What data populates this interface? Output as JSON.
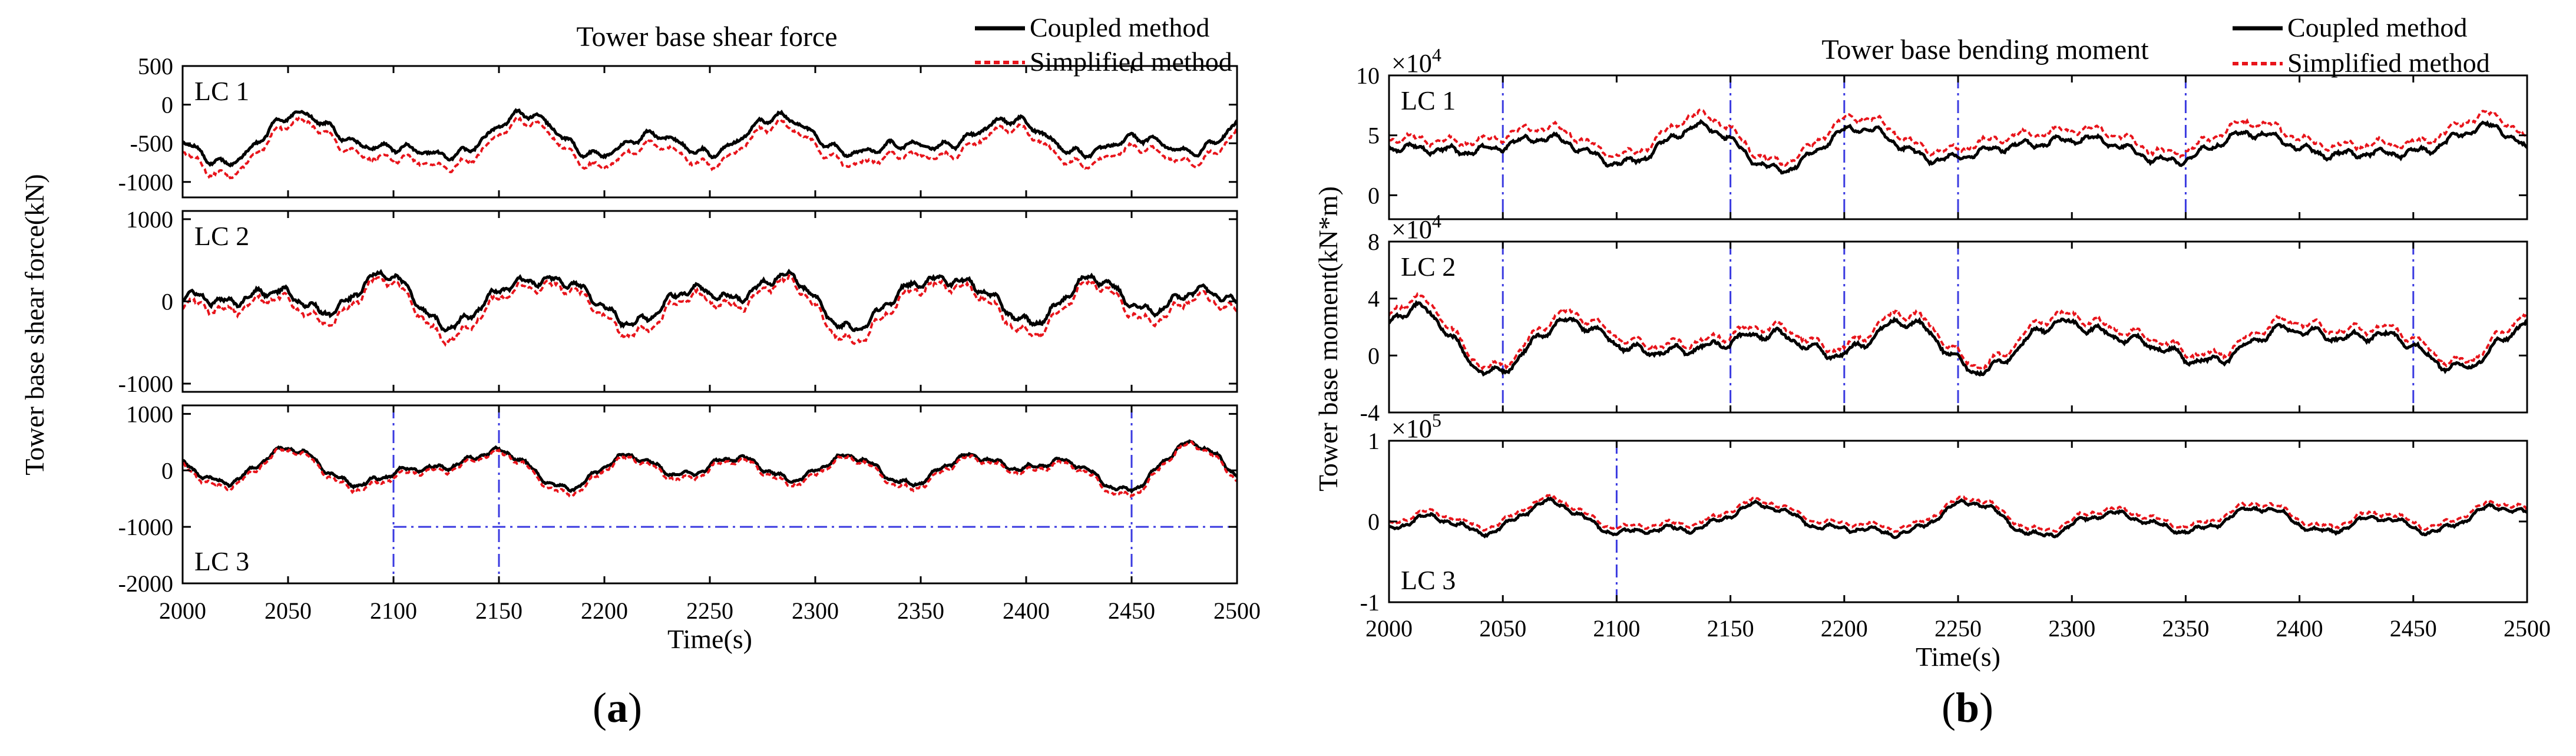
{
  "legend": {
    "coupled": "Coupled method",
    "simplified": "Simplified method"
  },
  "colors": {
    "coupled": "#000000",
    "simplified": "#e8141b",
    "case_label": "#1a1ad8",
    "guide": "#3a3ae0"
  },
  "time_label": "Time(s)",
  "chart_data": [
    {
      "id": "a",
      "type": "line",
      "caption_open": "(",
      "caption_letter": "a",
      "caption_close": ")",
      "title": "Tower base shear force",
      "ylabel": "Tower base shear force(kN)",
      "xlabel": "Time(s)",
      "xlim": [
        2000,
        2500
      ],
      "xticks": [
        2000,
        2050,
        2100,
        2150,
        2200,
        2250,
        2300,
        2350,
        2400,
        2450,
        2500
      ],
      "legend_position": "top-right",
      "panels": [
        {
          "label": "LC 1",
          "ylim": [
            -1200,
            500
          ],
          "yticks": [
            500,
            0,
            -500,
            -1000
          ],
          "exponent": "",
          "coupled": {
            "mean": -450,
            "amp": 330
          },
          "simplified": {
            "mean": -580,
            "amp": 360
          },
          "seed": 11,
          "guides": []
        },
        {
          "label": "LC 2",
          "ylim": [
            -1100,
            1100
          ],
          "yticks": [
            1000,
            0,
            -1000
          ],
          "exponent": "",
          "coupled": {
            "mean": 40,
            "amp": 380
          },
          "simplified": {
            "mean": -60,
            "amp": 430
          },
          "seed": 23,
          "guides": []
        },
        {
          "label": "LC 3",
          "ylim": [
            -2000,
            1150
          ],
          "yticks": [
            1000,
            0,
            -1000,
            -2000
          ],
          "exponent": "",
          "coupled": {
            "mean": 40,
            "amp": 360
          },
          "simplified": {
            "mean": -20,
            "amp": 390
          },
          "seed": 37,
          "guides": [
            {
              "kind": "v",
              "x": 2100,
              "y1": 1150,
              "y2": -2000
            },
            {
              "kind": "v",
              "x": 2150,
              "y1": 1150,
              "y2": -2000
            },
            {
              "kind": "v",
              "x": 2450,
              "y1": 1150,
              "y2": -2000
            },
            {
              "kind": "h",
              "y": -1000,
              "x1": 2100,
              "x2": 2500
            }
          ]
        }
      ]
    },
    {
      "id": "b",
      "type": "line",
      "caption_open": "(",
      "caption_letter": "b",
      "caption_close": ")",
      "title": "Tower base  bending moment",
      "ylabel": "Tower base moment(kN*m)",
      "xlabel": "Time(s)",
      "xlim": [
        2000,
        2500
      ],
      "xticks": [
        2000,
        2050,
        2100,
        2150,
        2200,
        2250,
        2300,
        2350,
        2400,
        2450,
        2500
      ],
      "legend_position": "top-right",
      "panels": [
        {
          "label": "LC 1",
          "ylim": [
            -2,
            10
          ],
          "yticks": [
            10,
            5,
            0
          ],
          "exponent": "4",
          "coupled": {
            "mean": 4.0,
            "amp": 2.3
          },
          "simplified": {
            "mean": 4.8,
            "amp": 2.5
          },
          "seed": 51,
          "guides": [
            {
              "kind": "v",
              "x": 2050,
              "y1": 10,
              "y2": -2
            },
            {
              "kind": "v",
              "x": 2150,
              "y1": 10,
              "y2": -2
            },
            {
              "kind": "v",
              "x": 2200,
              "y1": 10,
              "y2": -2
            },
            {
              "kind": "v",
              "x": 2250,
              "y1": 10,
              "y2": -2
            },
            {
              "kind": "v",
              "x": 2350,
              "y1": 10,
              "y2": -2
            }
          ]
        },
        {
          "label": "LC 2",
          "ylim": [
            -4,
            8
          ],
          "yticks": [
            8,
            4,
            0,
            -4
          ],
          "exponent": "4",
          "coupled": {
            "mean": 0.9,
            "amp": 2.3
          },
          "simplified": {
            "mean": 1.4,
            "amp": 2.4
          },
          "seed": 67,
          "guides": [
            {
              "kind": "v",
              "x": 2050,
              "y1": 8,
              "y2": -4
            },
            {
              "kind": "v",
              "x": 2150,
              "y1": 8,
              "y2": -4
            },
            {
              "kind": "v",
              "x": 2200,
              "y1": 8,
              "y2": -4
            },
            {
              "kind": "v",
              "x": 2250,
              "y1": 8,
              "y2": -4
            },
            {
              "kind": "v",
              "x": 2450,
              "y1": 8,
              "y2": -4
            }
          ]
        },
        {
          "label": "LC 3",
          "ylim": [
            -1,
            1
          ],
          "yticks": [
            1,
            0,
            -1
          ],
          "exponent": "5",
          "coupled": {
            "mean": 0.0,
            "amp": 0.26
          },
          "simplified": {
            "mean": 0.06,
            "amp": 0.25
          },
          "seed": 79,
          "guides": [
            {
              "kind": "v",
              "x": 2100,
              "y1": 1,
              "y2": -1
            }
          ]
        }
      ]
    }
  ]
}
